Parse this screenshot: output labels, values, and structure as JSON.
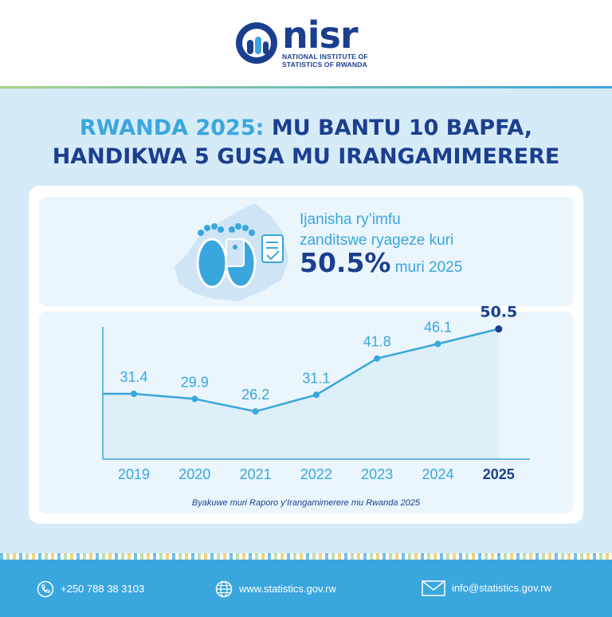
{
  "header": {
    "logo_word": "nisr",
    "logo_line1": "NATIONAL INSTITUTE OF",
    "logo_line2": "STATISTICS OF RWANDA"
  },
  "title": {
    "highlight": "RWANDA 2025:",
    "line1_rest": " MU BANTU 10 BAPFA,",
    "line2": "HANDIKWA 5 GUSA MU IRANGAMIMERERE"
  },
  "stat": {
    "line1": "Ijanisha ry’imfu",
    "line2": "zanditswe ryageze kuri",
    "value": "50.5%",
    "suffix": " muri 2025"
  },
  "chart_data": {
    "type": "line",
    "categories": [
      "2019",
      "2020",
      "2021",
      "2022",
      "2023",
      "2024",
      "2025"
    ],
    "values": [
      31.4,
      29.9,
      26.2,
      31.1,
      41.8,
      46.1,
      50.5
    ],
    "highlight_last": true
  },
  "source": "Byakuwe muri Raporo y’Irangamimerere mu Rwanda 2025",
  "footer": {
    "phone": "+250 788 38 3103",
    "web": "www.statistics.gov.rw",
    "email": "info@statistics.gov.rw"
  },
  "colors": {
    "navy": "#1b3f8f",
    "accent": "#3aa6de",
    "panel": "#d6ebf8"
  }
}
